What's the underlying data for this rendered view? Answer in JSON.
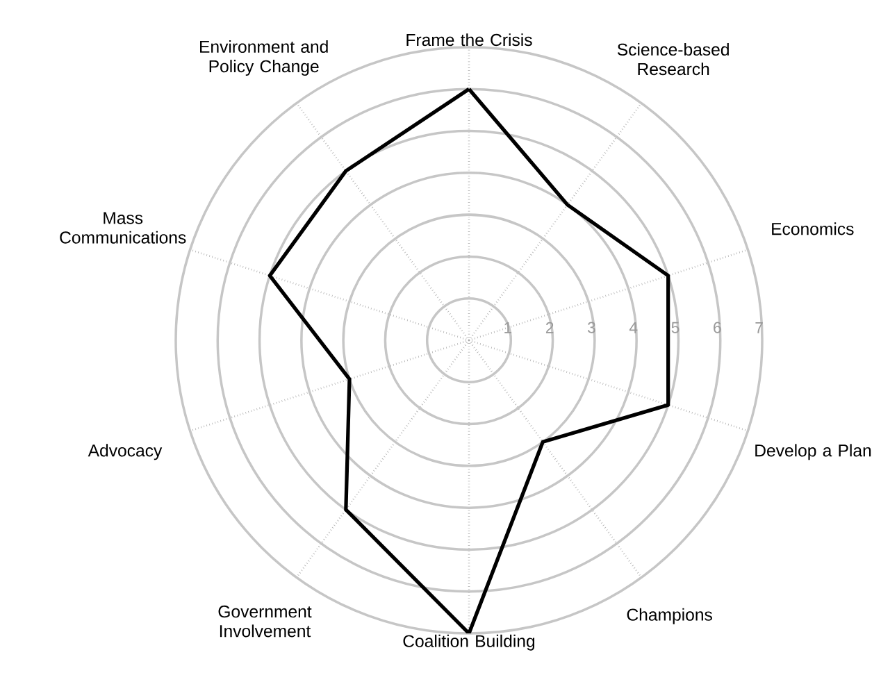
{
  "chart_data": {
    "type": "radar",
    "categories": [
      "Frame the Crisis",
      "Science-based Research",
      "Economics",
      "Develop a Plan",
      "Champions",
      "Coalition Building",
      "Government Involvement",
      "Advocacy",
      "Mass Communications",
      "Environment and Policy Change"
    ],
    "series": [
      {
        "color": "#000000",
        "values": [
          6,
          4,
          5,
          5,
          3,
          7,
          5,
          3,
          5,
          5
        ]
      }
    ],
    "ylim": [
      0,
      7
    ],
    "yticks": [
      1,
      2,
      3,
      4,
      5,
      6,
      7
    ],
    "grid": true,
    "marker": "none",
    "line_style": "solid"
  }
}
